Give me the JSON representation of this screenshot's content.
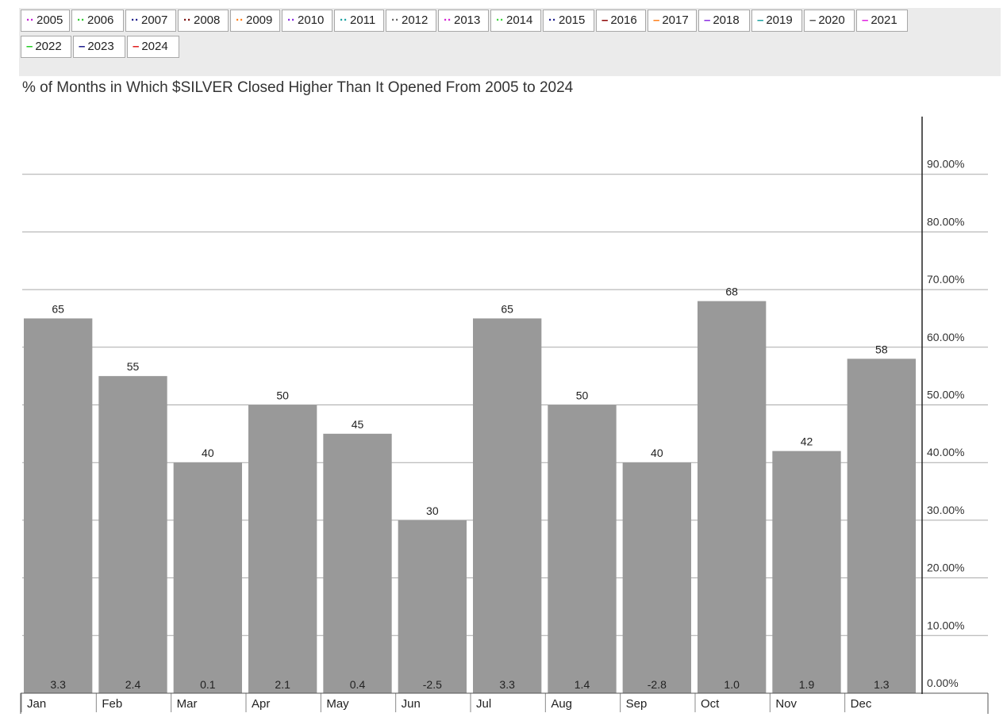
{
  "legend": [
    {
      "label": "2005",
      "color": "#c41fd4",
      "style": "dotted"
    },
    {
      "label": "2006",
      "color": "#2ecc2e",
      "style": "dotted"
    },
    {
      "label": "2007",
      "color": "#1a1a8a",
      "style": "dotted"
    },
    {
      "label": "2008",
      "color": "#7a0c0c",
      "style": "dotted"
    },
    {
      "label": "2009",
      "color": "#ff7f1a",
      "style": "dotted"
    },
    {
      "label": "2010",
      "color": "#8a2be2",
      "style": "dotted"
    },
    {
      "label": "2011",
      "color": "#1aa0a0",
      "style": "dotted"
    },
    {
      "label": "2012",
      "color": "#666666",
      "style": "dotted"
    },
    {
      "label": "2013",
      "color": "#d41fd4",
      "style": "dotted"
    },
    {
      "label": "2014",
      "color": "#3cd43c",
      "style": "dotted"
    },
    {
      "label": "2015",
      "color": "#1a1a8a",
      "style": "dotted"
    },
    {
      "label": "2016",
      "color": "#8b0000",
      "style": "solid"
    },
    {
      "label": "2017",
      "color": "#ff7f1a",
      "style": "solid"
    },
    {
      "label": "2018",
      "color": "#8a2be2",
      "style": "solid"
    },
    {
      "label": "2019",
      "color": "#1aa0a0",
      "style": "solid"
    },
    {
      "label": "2020",
      "color": "#555555",
      "style": "solid"
    },
    {
      "label": "2021",
      "color": "#e020e0",
      "style": "solid"
    },
    {
      "label": "2022",
      "color": "#22cc22",
      "style": "solid"
    },
    {
      "label": "2023",
      "color": "#1a1a8a",
      "style": "solid"
    },
    {
      "label": "2024",
      "color": "#e01a1a",
      "style": "solid"
    }
  ],
  "chart_data": {
    "type": "bar",
    "title": "% of Months in Which $SILVER Closed Higher Than It Opened From 2005 to 2024",
    "categories": [
      "Jan",
      "Feb",
      "Mar",
      "Apr",
      "May",
      "Jun",
      "Jul",
      "Aug",
      "Sep",
      "Oct",
      "Nov",
      "Dec"
    ],
    "values": [
      65,
      55,
      40,
      50,
      45,
      30,
      65,
      50,
      40,
      68,
      42,
      58
    ],
    "value_labels": [
      "65",
      "55",
      "40",
      "50",
      "45",
      "30",
      "65",
      "50",
      "40",
      "68",
      "42",
      "58"
    ],
    "bottom_labels": [
      "3.3",
      "2.4",
      "0.1",
      "2.1",
      "0.4",
      "-2.5",
      "3.3",
      "1.4",
      "-2.8",
      "1.0",
      "1.9",
      "1.3"
    ],
    "ylim": [
      0,
      100
    ],
    "yticks": [
      0,
      10,
      20,
      30,
      40,
      50,
      60,
      70,
      80,
      90
    ],
    "ytick_labels": [
      "0.00%",
      "10.00%",
      "20.00%",
      "30.00%",
      "40.00%",
      "50.00%",
      "60.00%",
      "70.00%",
      "80.00%",
      "90.00%"
    ],
    "y_axis_side": "right",
    "grid": true,
    "bar_color": "#999999"
  }
}
